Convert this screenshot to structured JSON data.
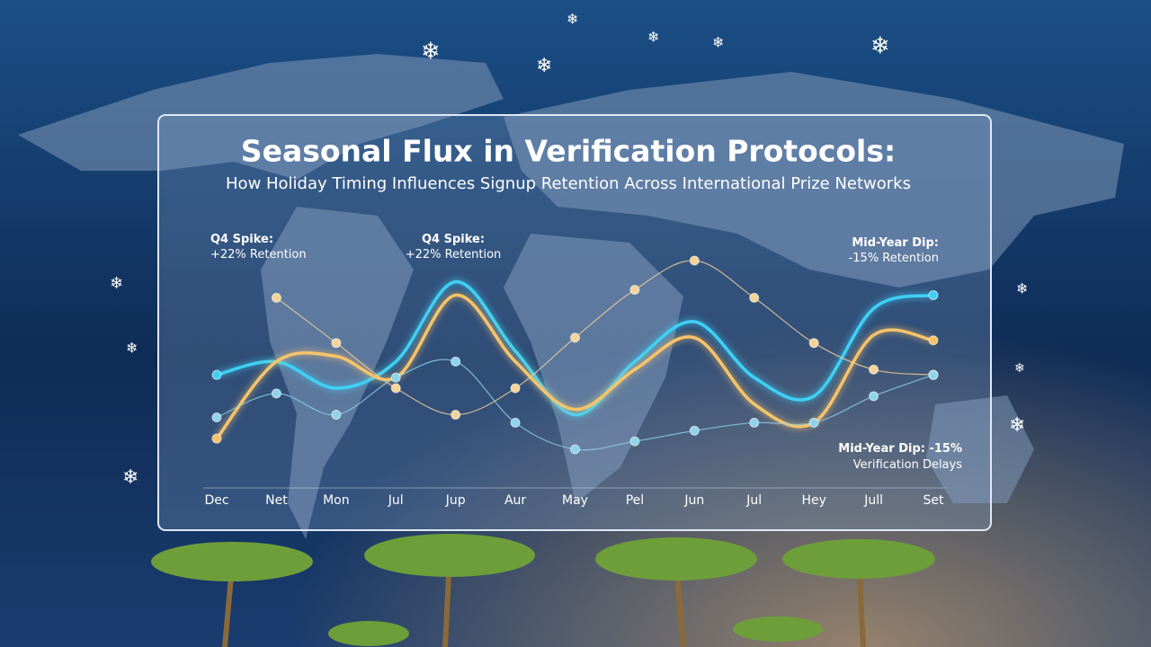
{
  "chart_data": {
    "type": "line",
    "title": "Seasonal Flux in Verification Protocols:",
    "subtitle": "How Holiday Timing Influences Signup Retention Across International Prize Networks",
    "categories": [
      "Dec",
      "Net",
      "Mon",
      "Jul",
      "Jup",
      "Aur",
      "May",
      "Pel",
      "Jun",
      "Jul",
      "Hey",
      "Jull",
      "Set"
    ],
    "series": [
      {
        "color": "#3fd0f5",
        "values": [
          48,
          53,
          43,
          53,
          83,
          57,
          33,
          53,
          68,
          47,
          40,
          73,
          78
        ]
      },
      {
        "color": "#f7c46a",
        "values": [
          24,
          53,
          55,
          47,
          78,
          53,
          35,
          50,
          62,
          37,
          30,
          63,
          61
        ]
      },
      {
        "color": "#f5d49a",
        "values": [
          null,
          77,
          60,
          43,
          33,
          43,
          62,
          80,
          91,
          77,
          60,
          50,
          48
        ]
      },
      {
        "color": "#8fd3ea",
        "values": [
          32,
          41,
          33,
          47,
          53,
          30,
          20,
          23,
          27,
          30,
          30,
          40,
          48
        ]
      }
    ],
    "annotations": [
      {
        "title": "Q4 Spike:",
        "text": "+22% Retention"
      },
      {
        "title": "Q4 Spike:",
        "text": "+22% Retention"
      },
      {
        "title": "Mid-Year Dip:",
        "text": "-15% Retention"
      },
      {
        "title": "Mid-Year Dip: -15%",
        "text": "Verification Delays"
      }
    ]
  }
}
